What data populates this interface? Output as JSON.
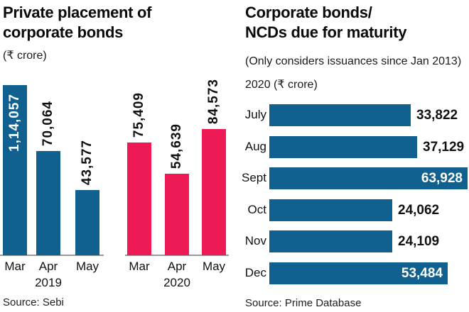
{
  "left_chart": {
    "title": "Private placement of corporate bonds",
    "unit_label": "(₹ crore)",
    "source": "Source: Sebi"
  },
  "right_chart": {
    "title_line1": "Corporate bonds/",
    "title_line2": "NCDs due for maturity",
    "subtitle": "(Only considers issuances since Jan 2013)",
    "unit_label": "2020 (₹ crore)",
    "source": "Source: Prime Database"
  },
  "colors": {
    "bar_blue": "#10618f",
    "bar_pink": "#ed1a55",
    "axis_gray": "#9a9a9a",
    "value_inside": "#ffffff",
    "value_outside": "#111111"
  },
  "chart_data": [
    {
      "type": "bar",
      "orientation": "vertical",
      "title": "Private placement of corporate bonds",
      "ylabel": "₹ crore",
      "series": [
        {
          "name": "2019",
          "color": "#10618f",
          "categories": [
            "Mar",
            "Apr",
            "May"
          ],
          "values": [
            114057,
            70064,
            43577
          ],
          "labels": [
            "1,14,057",
            "70,064",
            "43,577"
          ],
          "labels_inside": [
            true,
            false,
            false
          ]
        },
        {
          "name": "2020",
          "color": "#ed1a55",
          "categories": [
            "Mar",
            "Apr",
            "May"
          ],
          "values": [
            75409,
            54639,
            84573
          ],
          "labels": [
            "75,409",
            "54,639",
            "84,573"
          ],
          "labels_inside": [
            false,
            false,
            false
          ]
        }
      ],
      "ylim": [
        0,
        114057
      ],
      "grid": false,
      "source": "Source: Sebi"
    },
    {
      "type": "bar",
      "orientation": "horizontal",
      "title": "Corporate bonds/NCDs due for maturity",
      "subtitle": "(Only considers issuances since Jan 2013)",
      "xlabel": "₹ crore",
      "categories": [
        "July",
        "Aug",
        "Sept",
        "Oct",
        "Nov",
        "Dec"
      ],
      "values": [
        33822,
        37129,
        63928,
        24062,
        24109,
        53484
      ],
      "labels": [
        "33,822",
        "37,129",
        "63,928",
        "24,062",
        "24,109",
        "53,484"
      ],
      "labels_inside": [
        false,
        false,
        true,
        false,
        false,
        true
      ],
      "grid": false,
      "source": "Source: Prime Database"
    }
  ]
}
